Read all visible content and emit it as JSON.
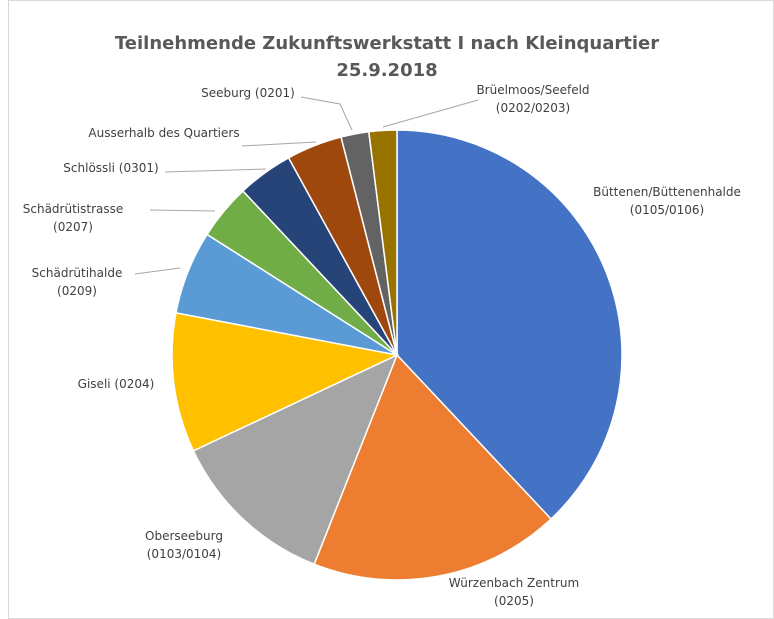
{
  "chart_data": {
    "type": "pie",
    "title": "Teilnehmende Zukunftswerkstatt I nach Kleinquartier",
    "subtitle": "25.9.2018",
    "categories": [
      "Büttenen/Büttenenhalde\n(0105/0106)",
      "Würzenbach Zentrum\n(0205)",
      "Oberseeburg\n(0103/0104)",
      "Giseli (0204)",
      "Schädrütihalde\n(0209)",
      "Schädrütistrasse\n(0207)",
      "Schlössli (0301)",
      "Ausserhalb des Quartiers",
      "Seeburg (0201)",
      "Brüelmoos/Seefeld\n(0202/0203)"
    ],
    "values": [
      38,
      18,
      12,
      10,
      6,
      4,
      4,
      4,
      2,
      2
    ],
    "colors": [
      "#4472c4",
      "#ed7d31",
      "#a5a5a5",
      "#ffc000",
      "#5b9bd5",
      "#70ad47",
      "#264478",
      "#9e480e",
      "#636363",
      "#997300"
    ]
  }
}
